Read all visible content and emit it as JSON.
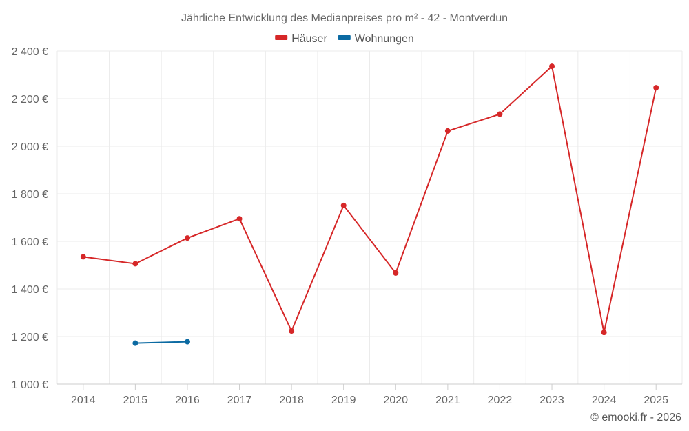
{
  "chart_data": {
    "type": "line",
    "title": "Jährliche Entwicklung des Medianpreises pro m² - 42 - Montverdun",
    "categories": [
      "2014",
      "2015",
      "2016",
      "2017",
      "2018",
      "2019",
      "2020",
      "2021",
      "2022",
      "2023",
      "2024",
      "2025"
    ],
    "series": [
      {
        "name": "Häuser",
        "color": "#d62728",
        "values": [
          1535,
          1506,
          1614,
          1695,
          1223,
          1751,
          1467,
          2064,
          2135,
          2336,
          1217,
          2246
        ]
      },
      {
        "name": "Wohnungen",
        "color": "#0b6aa2",
        "values": [
          null,
          1172,
          1178,
          null,
          null,
          null,
          null,
          null,
          null,
          null,
          null,
          null
        ]
      }
    ],
    "ylim": [
      1000,
      2400
    ],
    "yticks": [
      1000,
      1200,
      1400,
      1600,
      1800,
      2000,
      2200,
      2400
    ],
    "ytick_labels": [
      "1 000 €",
      "1 200 €",
      "1 400 €",
      "1 600 €",
      "1 800 €",
      "2 000 €",
      "2 200 €",
      "2 400 €"
    ],
    "xlabel": "",
    "ylabel": "",
    "grid": true,
    "legend_position": "top-center"
  },
  "credit": "© emooki.fr - 2026"
}
